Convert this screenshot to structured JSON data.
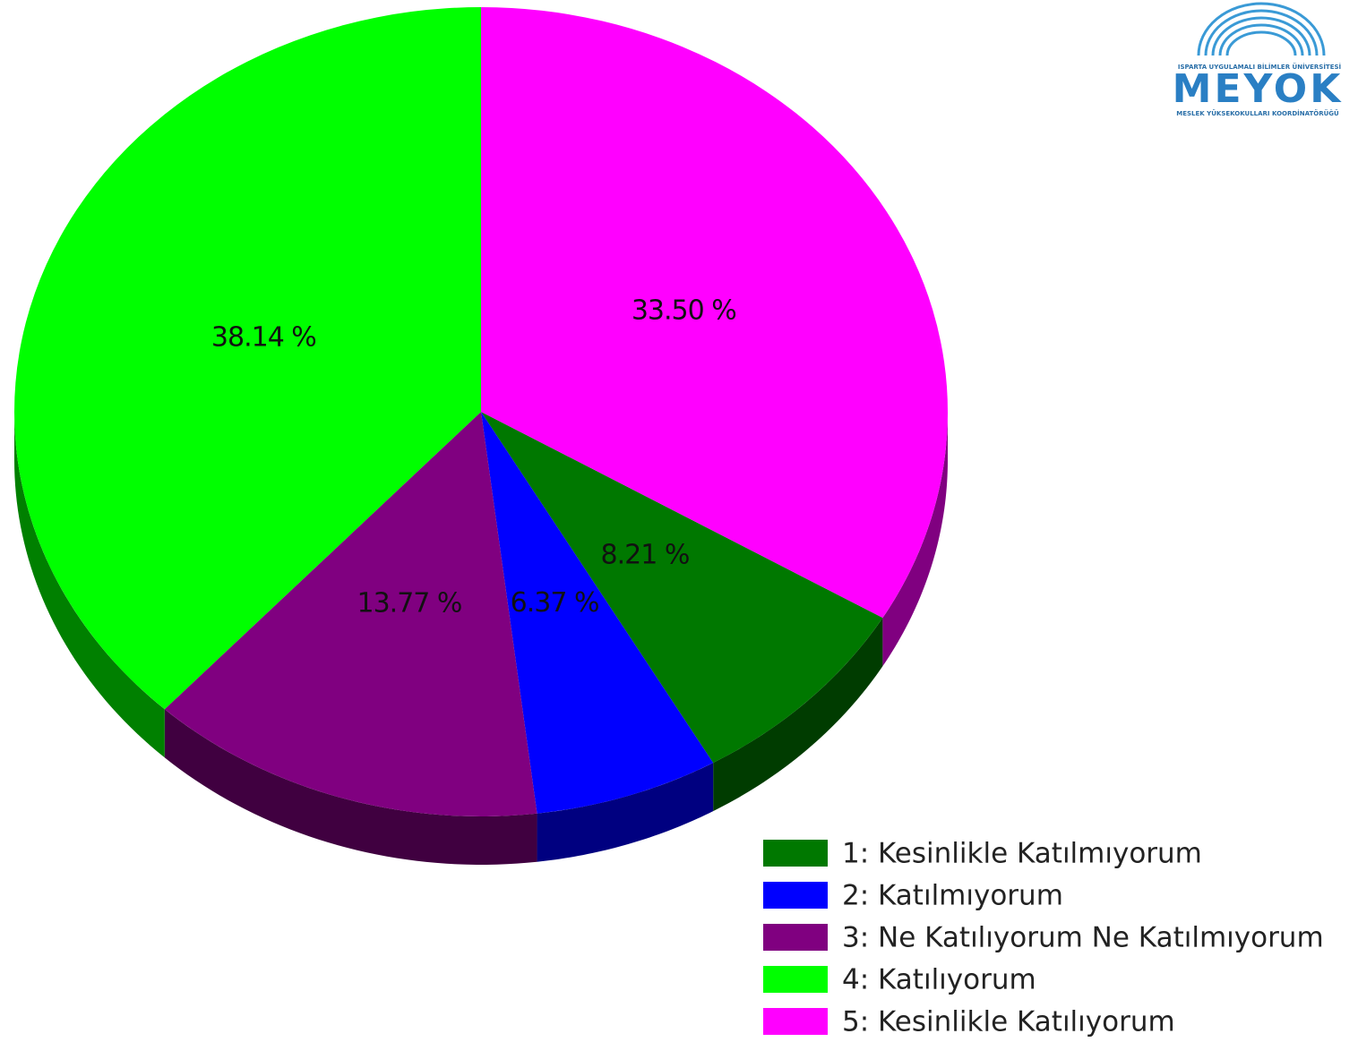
{
  "chart_data": {
    "type": "pie",
    "categories": [
      "1: Kesinlikle Katılmıyorum",
      "2: Katılmıyorum",
      "3: Ne Katılıyorum Ne Katılmıyorum",
      "4: Katılıyorum",
      "5: Kesinlikle Katılıyorum"
    ],
    "values": [
      8.21,
      6.37,
      13.77,
      38.14,
      33.5
    ],
    "value_labels": [
      "8.21 %",
      "6.37 %",
      "13.77 %",
      "38.14 %",
      "33.50 %"
    ],
    "colors": [
      "#007800",
      "#0000ff",
      "#800080",
      "#00ff00",
      "#ff00ff"
    ],
    "legend": "bottom-right"
  },
  "logo": {
    "top": "ISPARTA UYGULAMALI BİLİMLER ÜNİVERSİTESİ",
    "name": "MEYOK",
    "bottom": "MESLEK YÜKSEKOKULLARI KOORDİNATÖRÜĞÜ"
  }
}
